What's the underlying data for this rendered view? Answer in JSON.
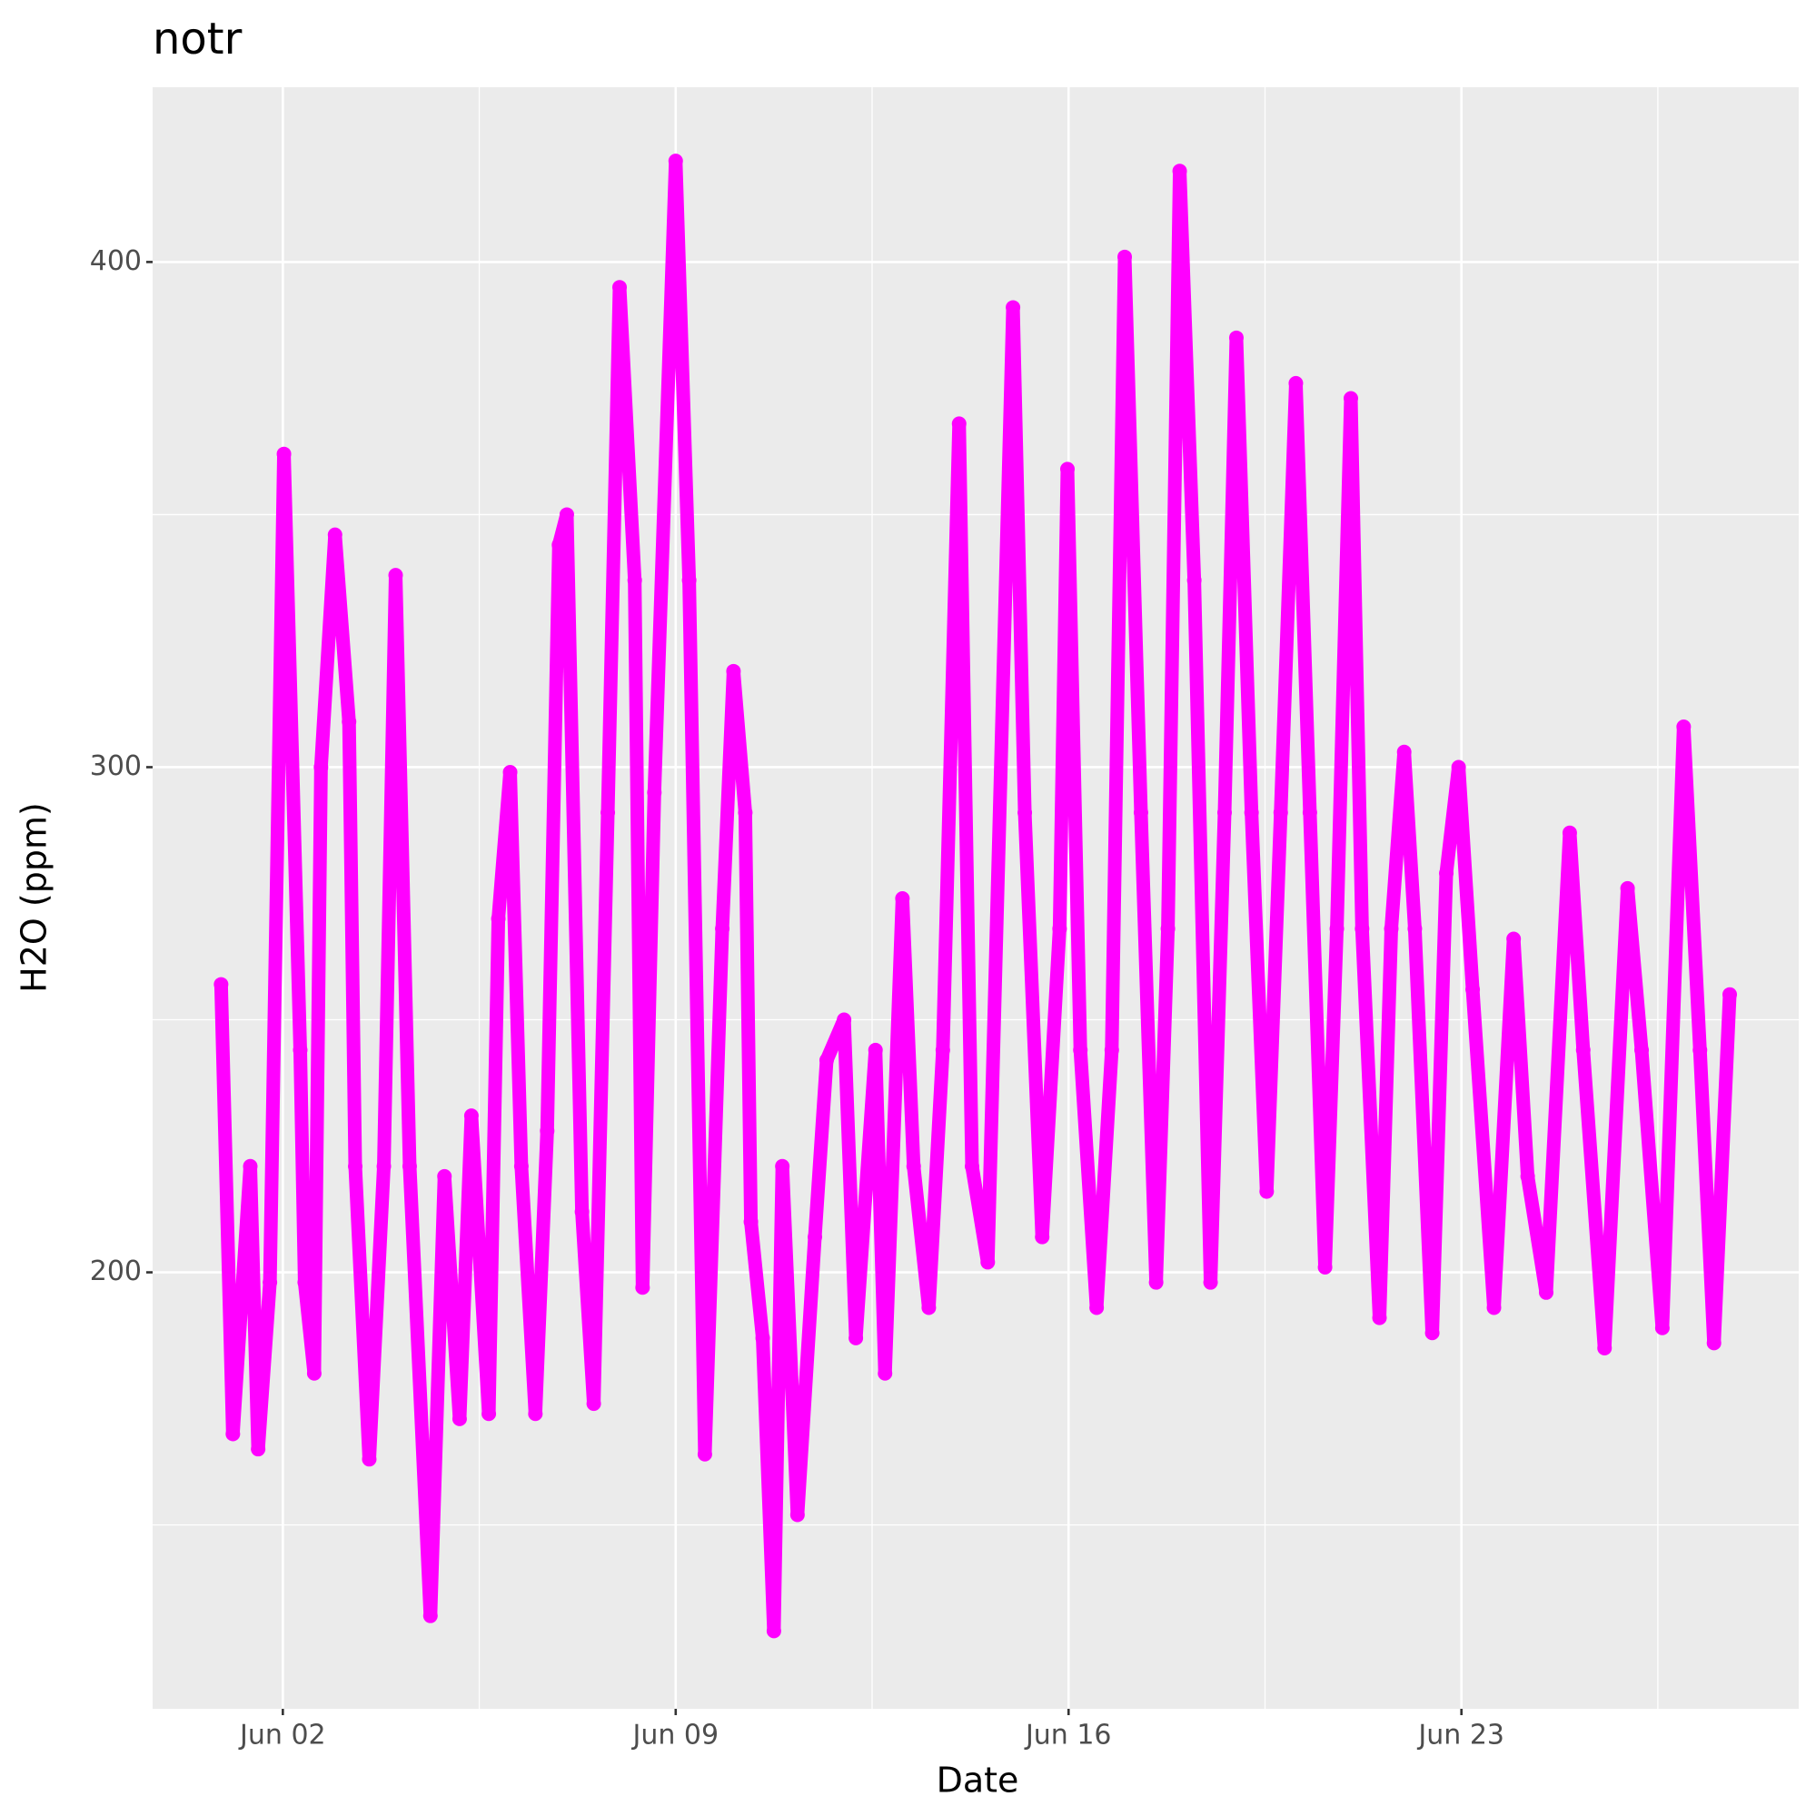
{
  "chart_data": {
    "type": "scatter",
    "title": "notr",
    "xlabel": "Date",
    "ylabel": "H2O (ppm)",
    "color": "#FF00FF",
    "xlim": [
      -0.32,
      29.01
    ],
    "ylim": [
      113.6,
      434.6
    ],
    "xticks": [
      {
        "value": 2,
        "label": "Jun 02"
      },
      {
        "value": 9,
        "label": "Jun 09"
      },
      {
        "value": 16,
        "label": "Jun 16"
      },
      {
        "value": 23,
        "label": "Jun 23"
      }
    ],
    "x_minor_ticks": [
      5.5,
      12.5,
      19.5,
      26.5
    ],
    "yticks": [
      200,
      300,
      400
    ],
    "y_minor_ticks": [
      150,
      250,
      350
    ],
    "grid": true,
    "x": [
      0.9,
      1.11,
      1.42,
      1.56,
      1.77,
      2.02,
      2.31,
      2.39,
      2.56,
      2.68,
      2.93,
      3.18,
      3.29,
      3.54,
      3.8,
      4.01,
      4.26,
      4.63,
      4.88,
      5.15,
      5.36,
      5.67,
      5.84,
      6.05,
      6.25,
      6.5,
      6.71,
      6.92,
      7.06,
      7.33,
      7.54,
      7.79,
      8.0,
      8.27,
      8.41,
      8.62,
      9.0,
      9.24,
      9.52,
      9.83,
      10.03,
      10.24,
      10.34,
      10.55,
      10.75,
      10.9,
      11.17,
      11.48,
      11.69,
      12.0,
      12.21,
      12.56,
      12.73,
      13.04,
      13.24,
      13.51,
      13.76,
      14.05,
      14.28,
      14.56,
      15.01,
      15.22,
      15.53,
      15.84,
      15.98,
      16.21,
      16.5,
      16.77,
      17.0,
      17.29,
      17.56,
      17.77,
      17.98,
      18.24,
      18.53,
      18.78,
      18.99,
      19.26,
      19.53,
      19.78,
      20.05,
      20.3,
      20.57,
      20.78,
      21.03,
      21.23,
      21.54,
      21.75,
      21.98,
      22.17,
      22.48,
      22.73,
      22.95,
      23.2,
      23.58,
      23.93,
      24.18,
      24.51,
      24.93,
      25.17,
      25.55,
      25.96,
      26.21,
      26.58,
      26.96,
      27.25,
      27.5,
      27.78
    ],
    "values": [
      257,
      168,
      221,
      165,
      198,
      362,
      244,
      198,
      180,
      300,
      346,
      309,
      221,
      163,
      221,
      338,
      221,
      132,
      219,
      171,
      231,
      172,
      270,
      299,
      221,
      172,
      228,
      344,
      350,
      212,
      174,
      291,
      395,
      337,
      197,
      295,
      420,
      337,
      164,
      268,
      319,
      291,
      210,
      187,
      129,
      221,
      152,
      207,
      242,
      250,
      187,
      244,
      180,
      274,
      221,
      193,
      244,
      368,
      221,
      202,
      391,
      291,
      207,
      268,
      359,
      244,
      193,
      244,
      401,
      291,
      198,
      268,
      418,
      337,
      198,
      291,
      385,
      291,
      216,
      291,
      376,
      291,
      201,
      268,
      373,
      268,
      191,
      268,
      303,
      268,
      188,
      279,
      300,
      256,
      193,
      266,
      219,
      196,
      287,
      244,
      185,
      276,
      244,
      189,
      308,
      244,
      186,
      255
    ]
  }
}
